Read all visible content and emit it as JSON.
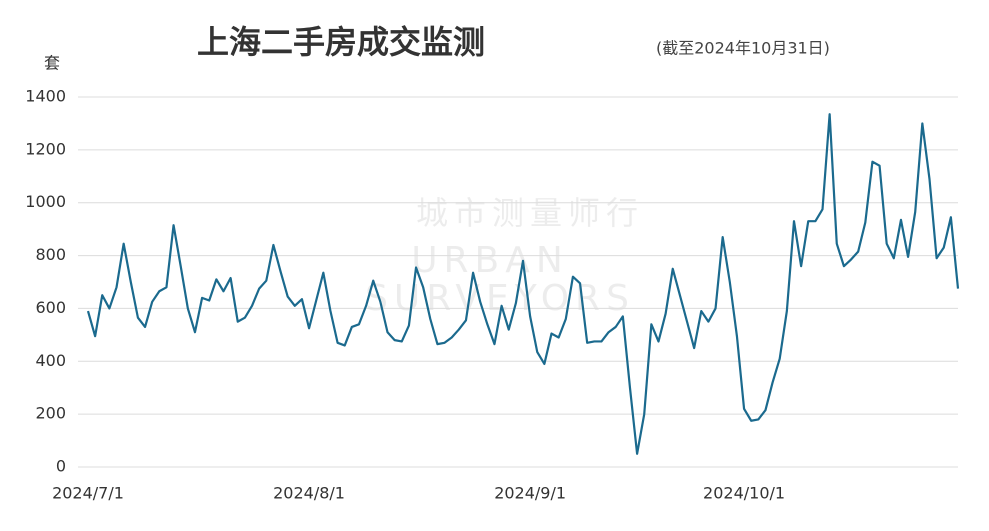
{
  "chart_data": {
    "type": "line",
    "title": "上海二手房成交监测",
    "subtitle": "(截至2024年10月31日)",
    "y_label": "套",
    "watermark": [
      "城市测量师行",
      "URBAN",
      "SURVEYORS"
    ],
    "x": [
      "2024/7/1",
      "2024/7/2",
      "2024/7/3",
      "2024/7/4",
      "2024/7/5",
      "2024/7/6",
      "2024/7/7",
      "2024/7/8",
      "2024/7/9",
      "2024/7/10",
      "2024/7/11",
      "2024/7/12",
      "2024/7/13",
      "2024/7/14",
      "2024/7/15",
      "2024/7/16",
      "2024/7/17",
      "2024/7/18",
      "2024/7/19",
      "2024/7/20",
      "2024/7/21",
      "2024/7/22",
      "2024/7/23",
      "2024/7/24",
      "2024/7/25",
      "2024/7/26",
      "2024/7/27",
      "2024/7/28",
      "2024/7/29",
      "2024/7/30",
      "2024/7/31",
      "2024/8/1",
      "2024/8/2",
      "2024/8/3",
      "2024/8/4",
      "2024/8/5",
      "2024/8/6",
      "2024/8/7",
      "2024/8/8",
      "2024/8/9",
      "2024/8/10",
      "2024/8/11",
      "2024/8/12",
      "2024/8/13",
      "2024/8/14",
      "2024/8/15",
      "2024/8/16",
      "2024/8/17",
      "2024/8/18",
      "2024/8/19",
      "2024/8/20",
      "2024/8/21",
      "2024/8/22",
      "2024/8/23",
      "2024/8/24",
      "2024/8/25",
      "2024/8/26",
      "2024/8/27",
      "2024/8/28",
      "2024/8/29",
      "2024/8/30",
      "2024/8/31",
      "2024/9/1",
      "2024/9/2",
      "2024/9/3",
      "2024/9/4",
      "2024/9/5",
      "2024/9/6",
      "2024/9/7",
      "2024/9/8",
      "2024/9/9",
      "2024/9/10",
      "2024/9/11",
      "2024/9/12",
      "2024/9/13",
      "2024/9/14",
      "2024/9/15",
      "2024/9/16",
      "2024/9/17",
      "2024/9/18",
      "2024/9/19",
      "2024/9/20",
      "2024/9/21",
      "2024/9/22",
      "2024/9/23",
      "2024/9/24",
      "2024/9/25",
      "2024/9/26",
      "2024/9/27",
      "2024/9/28",
      "2024/9/29",
      "2024/9/30",
      "2024/10/1",
      "2024/10/2",
      "2024/10/3",
      "2024/10/4",
      "2024/10/5",
      "2024/10/6",
      "2024/10/7",
      "2024/10/8",
      "2024/10/9",
      "2024/10/10",
      "2024/10/11",
      "2024/10/12",
      "2024/10/13",
      "2024/10/14",
      "2024/10/15",
      "2024/10/16",
      "2024/10/17",
      "2024/10/18",
      "2024/10/19",
      "2024/10/20",
      "2024/10/21",
      "2024/10/22",
      "2024/10/23",
      "2024/10/24",
      "2024/10/25",
      "2024/10/26",
      "2024/10/27",
      "2024/10/28",
      "2024/10/29",
      "2024/10/30",
      "2024/10/31"
    ],
    "values": [
      590,
      495,
      650,
      600,
      680,
      845,
      700,
      565,
      530,
      625,
      665,
      680,
      915,
      760,
      600,
      510,
      640,
      630,
      710,
      665,
      715,
      550,
      565,
      610,
      675,
      705,
      840,
      740,
      645,
      610,
      635,
      525,
      630,
      735,
      590,
      470,
      460,
      530,
      540,
      610,
      705,
      625,
      510,
      480,
      475,
      535,
      755,
      680,
      560,
      465,
      470,
      490,
      520,
      555,
      735,
      625,
      540,
      465,
      610,
      520,
      620,
      780,
      570,
      435,
      390,
      505,
      490,
      560,
      720,
      695,
      470,
      475,
      475,
      510,
      530,
      570,
      300,
      50,
      200,
      540,
      475,
      580,
      750,
      650,
      550,
      450,
      590,
      550,
      600,
      870,
      700,
      495,
      220,
      175,
      180,
      215,
      320,
      410,
      590,
      930,
      760,
      930,
      930,
      975,
      1335,
      845,
      760,
      785,
      815,
      925,
      1155,
      1140,
      845,
      790,
      935,
      795,
      965,
      1300,
      1090,
      790,
      830,
      945,
      675
    ],
    "color": "#1b6a8e",
    "xlim": [
      "2024/7/1",
      "2024/10/31"
    ],
    "xticks": [
      "2024/7/1",
      "2024/8/1",
      "2024/9/1",
      "2024/10/1"
    ],
    "ylim": [
      0,
      1400
    ],
    "yticks": [
      0,
      200,
      400,
      600,
      800,
      1000,
      1200,
      1400
    ],
    "grid": true
  }
}
